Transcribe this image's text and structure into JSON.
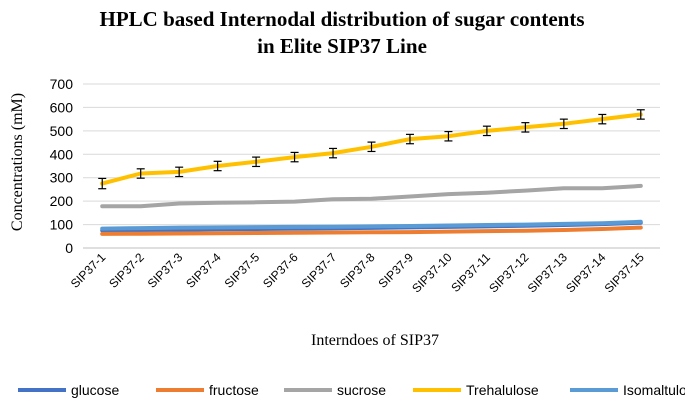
{
  "chart_data": {
    "type": "line",
    "title": [
      "HPLC based Internodal distribution of sugar contents",
      "in Elite SIP37 Line"
    ],
    "xlabel": "Interndoes of SIP37",
    "ylabel": "Concentrations (mM)",
    "ylim": [
      0,
      700
    ],
    "yticks": [
      0,
      100,
      200,
      300,
      400,
      500,
      600,
      700
    ],
    "categories": [
      "SIP37-1",
      "SIP37-2",
      "SIP37-3",
      "SIP37-4",
      "SIP37-5",
      "SIP37-6",
      "SIP37-7",
      "SIP37-8",
      "SIP37-9",
      "SIP37-10",
      "SIP37-11",
      "SIP37-12",
      "SIP37-13",
      "SIP37-14",
      "SIP37-15"
    ],
    "legend_position": "bottom",
    "series": [
      {
        "name": "glucose",
        "color": "#4472C4",
        "values": [
          75,
          77,
          78,
          80,
          81,
          83,
          84,
          86,
          88,
          90,
          92,
          95,
          98,
          102,
          108
        ]
      },
      {
        "name": "fructose",
        "color": "#ED7D31",
        "values": [
          60,
          61,
          62,
          63,
          64,
          65,
          66,
          67,
          68,
          70,
          72,
          74,
          77,
          81,
          87
        ]
      },
      {
        "name": "sucrose",
        "color": "#A5A5A5",
        "values": [
          178,
          178,
          190,
          193,
          195,
          198,
          208,
          210,
          220,
          230,
          236,
          245,
          255,
          255,
          265
        ]
      },
      {
        "name": "Trehalulose",
        "color": "#FFC000",
        "values": [
          275,
          318,
          325,
          350,
          368,
          388,
          405,
          432,
          465,
          477,
          500,
          515,
          530,
          550,
          570
        ],
        "errors": [
          22,
          20,
          20,
          20,
          20,
          20,
          20,
          20,
          20,
          20,
          20,
          20,
          20,
          20,
          20
        ]
      },
      {
        "name": "Isomaltulose",
        "color": "#5B9BD5",
        "values": [
          83,
          85,
          87,
          88,
          89,
          90,
          91,
          92,
          94,
          96,
          98,
          100,
          103,
          106,
          112
        ]
      }
    ]
  }
}
